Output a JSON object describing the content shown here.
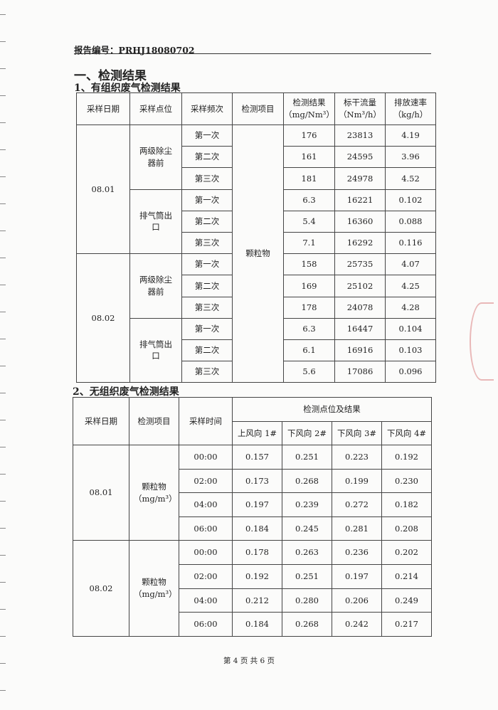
{
  "report_no": "报告编号：PRHJ18080702",
  "section_title": "一、检测结果",
  "table1": {
    "title": "1、有组织废气检测结果",
    "headers": [
      "采样日期",
      "采样点位",
      "采样频次",
      "检测项目",
      "检测结果（mg/Nm³）",
      "标干流量（Nm³/h）",
      "排放速率（kg/h）"
    ],
    "item": "颗粒物",
    "groups": [
      {
        "date": "08.01",
        "points": [
          {
            "name": "两级除尘器前",
            "rows": [
              [
                "第一次",
                "176",
                "23813",
                "4.19"
              ],
              [
                "第二次",
                "161",
                "24595",
                "3.96"
              ],
              [
                "第三次",
                "181",
                "24978",
                "4.52"
              ]
            ]
          },
          {
            "name": "排气筒出口",
            "rows": [
              [
                "第一次",
                "6.3",
                "16221",
                "0.102"
              ],
              [
                "第二次",
                "5.4",
                "16360",
                "0.088"
              ],
              [
                "第三次",
                "7.1",
                "16292",
                "0.116"
              ]
            ]
          }
        ]
      },
      {
        "date": "08.02",
        "points": [
          {
            "name": "两级除尘器前",
            "rows": [
              [
                "第一次",
                "158",
                "25735",
                "4.07"
              ],
              [
                "第二次",
                "169",
                "25102",
                "4.25"
              ],
              [
                "第三次",
                "178",
                "24078",
                "4.28"
              ]
            ]
          },
          {
            "name": "排气筒出口",
            "rows": [
              [
                "第一次",
                "6.3",
                "16447",
                "0.104"
              ],
              [
                "第二次",
                "6.1",
                "16916",
                "0.103"
              ],
              [
                "第三次",
                "5.6",
                "17086",
                "0.096"
              ]
            ]
          }
        ]
      }
    ]
  },
  "table2": {
    "title": "2、无组织废气检测结果",
    "headers": [
      "采样日期",
      "检测项目",
      "采样时间",
      "检测点位及结果"
    ],
    "points": [
      "上风向 1#",
      "下风向 2#",
      "下风向 3#",
      "下风向 4#"
    ],
    "groups": [
      {
        "date": "08.01",
        "item": "颗粒物（mg/m³）",
        "rows": [
          [
            "00:00",
            "0.157",
            "0.251",
            "0.223",
            "0.192"
          ],
          [
            "02:00",
            "0.173",
            "0.268",
            "0.199",
            "0.230"
          ],
          [
            "04:00",
            "0.197",
            "0.239",
            "0.272",
            "0.182"
          ],
          [
            "06:00",
            "0.184",
            "0.245",
            "0.281",
            "0.208"
          ]
        ]
      },
      {
        "date": "08.02",
        "item": "颗粒物（mg/m³）",
        "rows": [
          [
            "00:00",
            "0.178",
            "0.263",
            "0.236",
            "0.202"
          ],
          [
            "02:00",
            "0.192",
            "0.251",
            "0.197",
            "0.214"
          ],
          [
            "04:00",
            "0.212",
            "0.280",
            "0.206",
            "0.249"
          ],
          [
            "06:00",
            "0.184",
            "0.268",
            "0.242",
            "0.217"
          ]
        ]
      }
    ]
  },
  "footer": "第 4 页 共 6 页"
}
